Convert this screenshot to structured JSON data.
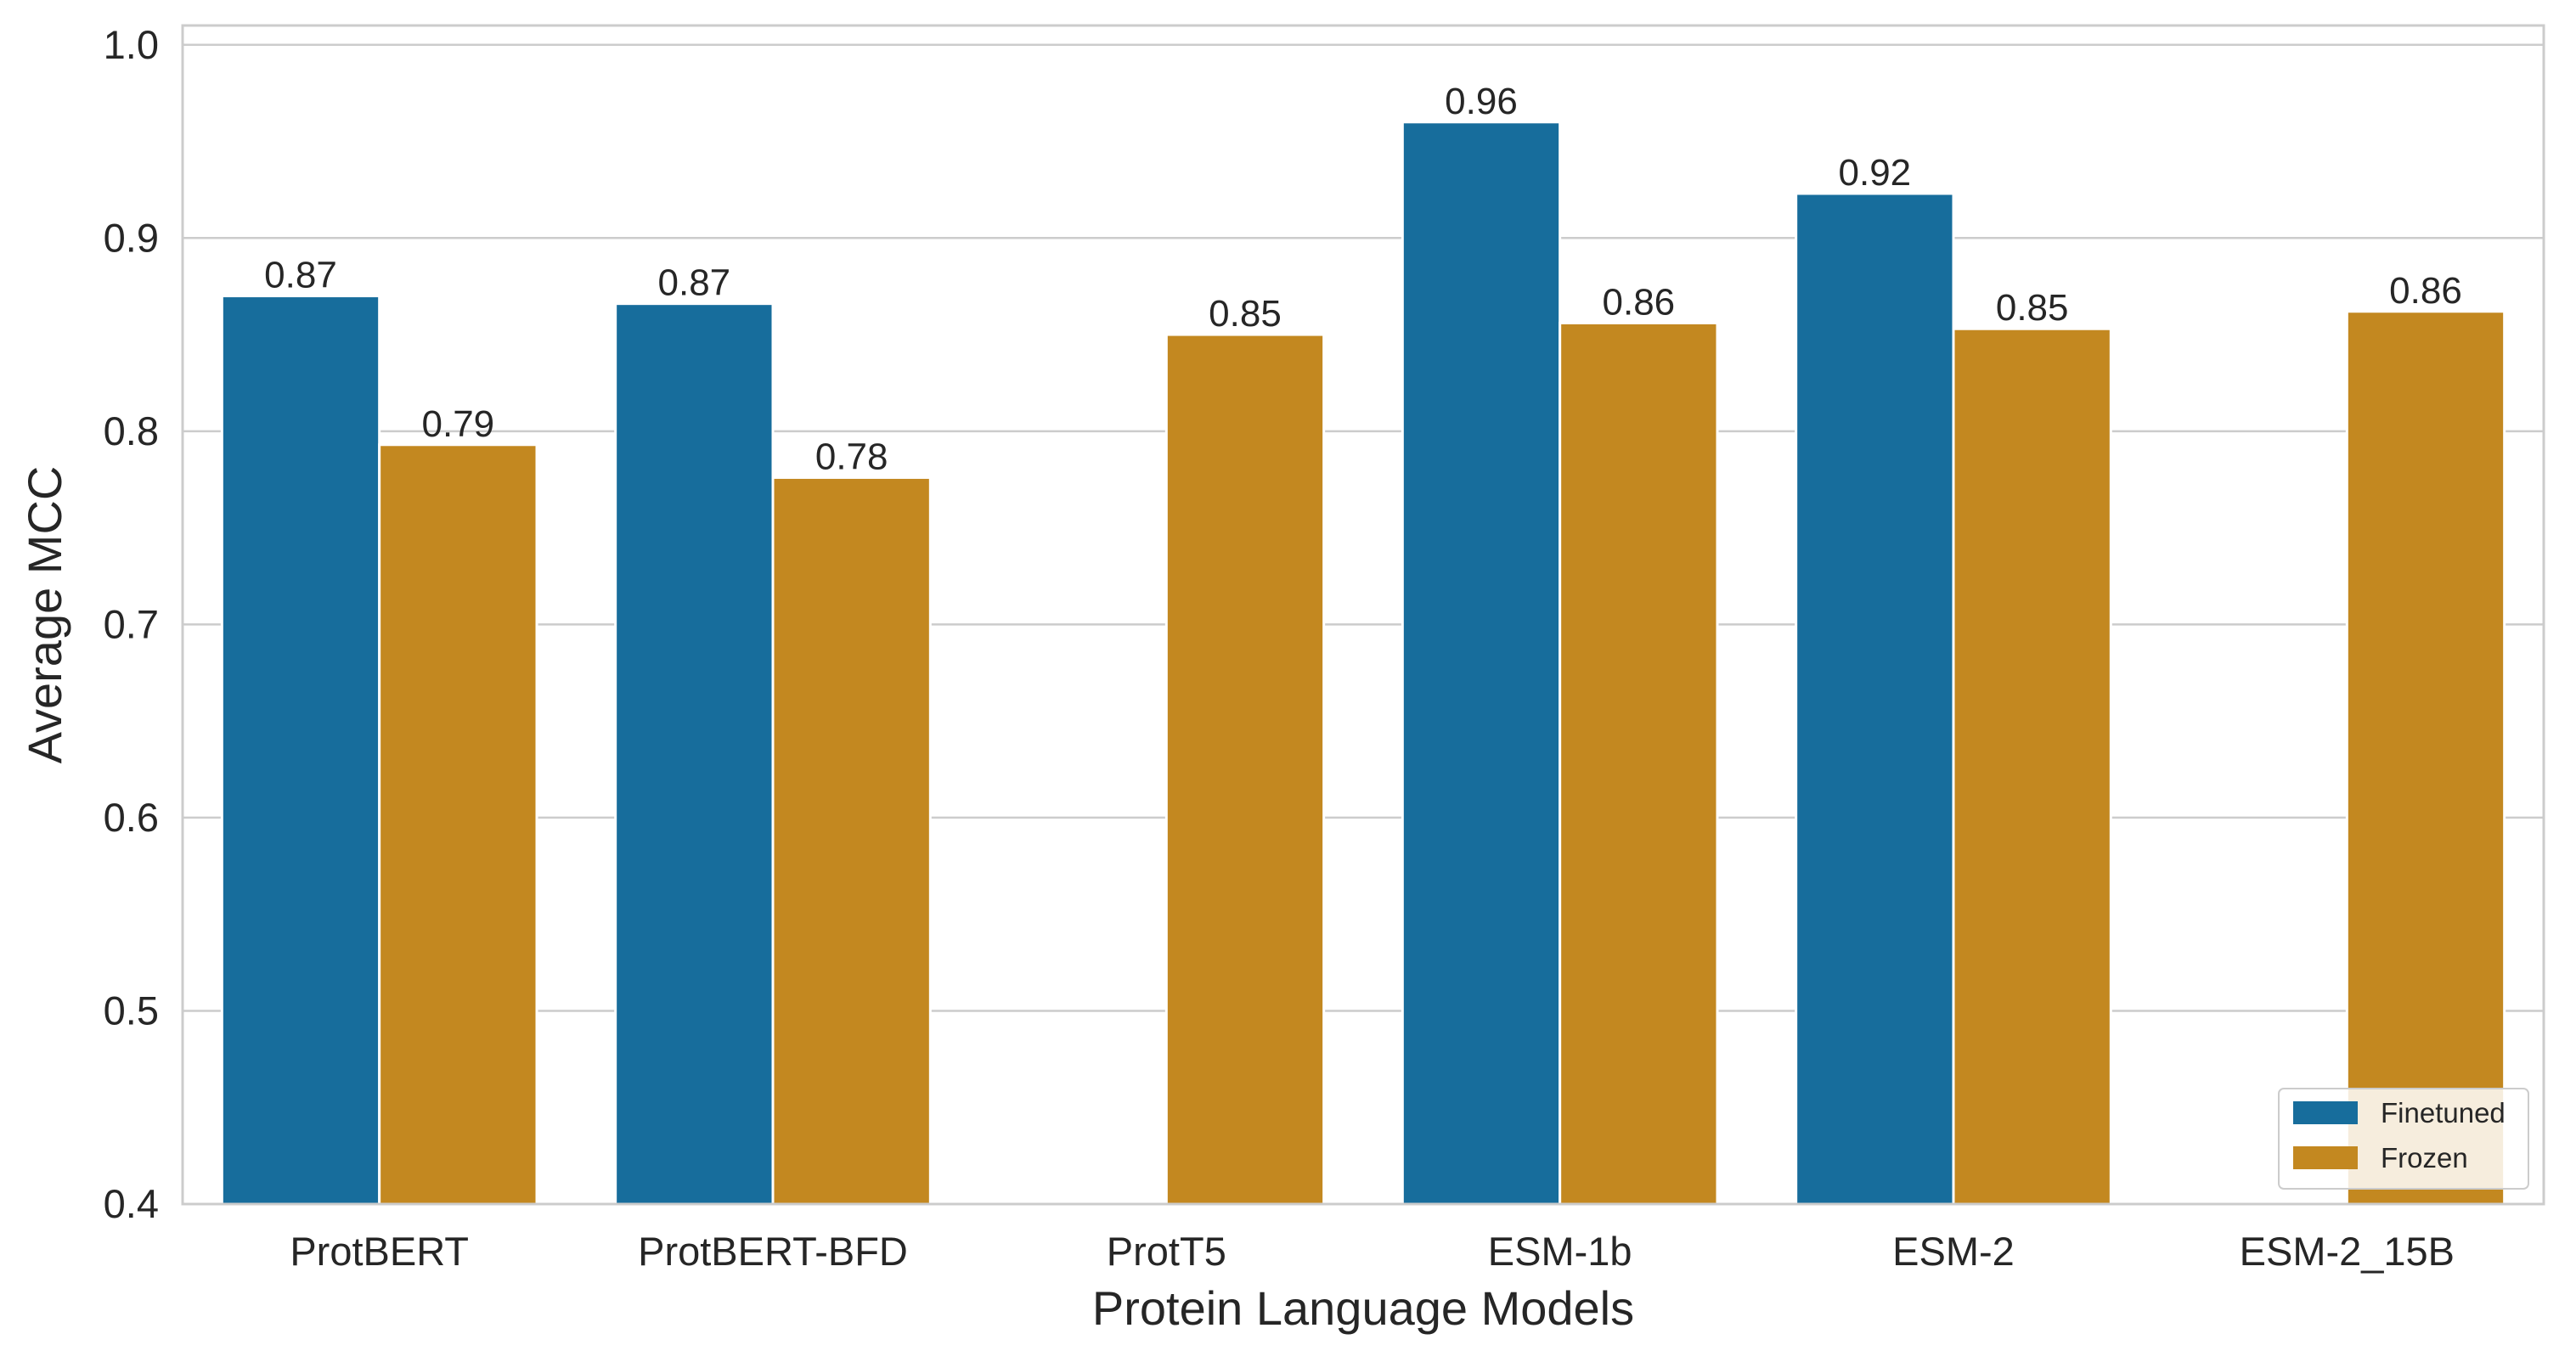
{
  "chart_data": {
    "type": "bar",
    "xlabel": "Protein Language Models",
    "ylabel": "Average MCC",
    "ylim": [
      0.4,
      1.01
    ],
    "yticks": [
      "0.4",
      "0.5",
      "0.6",
      "0.7",
      "0.8",
      "0.9",
      "1.0"
    ],
    "grid": "horizontal",
    "legend_position": "bottom-right",
    "categories": [
      "ProtBERT",
      "ProtBERT-BFD",
      "ProtT5",
      "ESM-1b",
      "ESM-2",
      "ESM-2_15B"
    ],
    "series": [
      {
        "name": "Finetuned",
        "color": "#176d9c",
        "values": [
          0.87,
          0.866,
          null,
          0.96,
          0.923,
          null
        ],
        "labels": [
          "0.87",
          "0.87",
          null,
          "0.96",
          "0.92",
          null
        ]
      },
      {
        "name": "Frozen",
        "color": "#c38820",
        "values": [
          0.793,
          0.776,
          0.85,
          0.856,
          0.853,
          0.862
        ],
        "labels": [
          "0.79",
          "0.78",
          "0.85",
          "0.86",
          "0.85",
          "0.86"
        ]
      }
    ]
  }
}
